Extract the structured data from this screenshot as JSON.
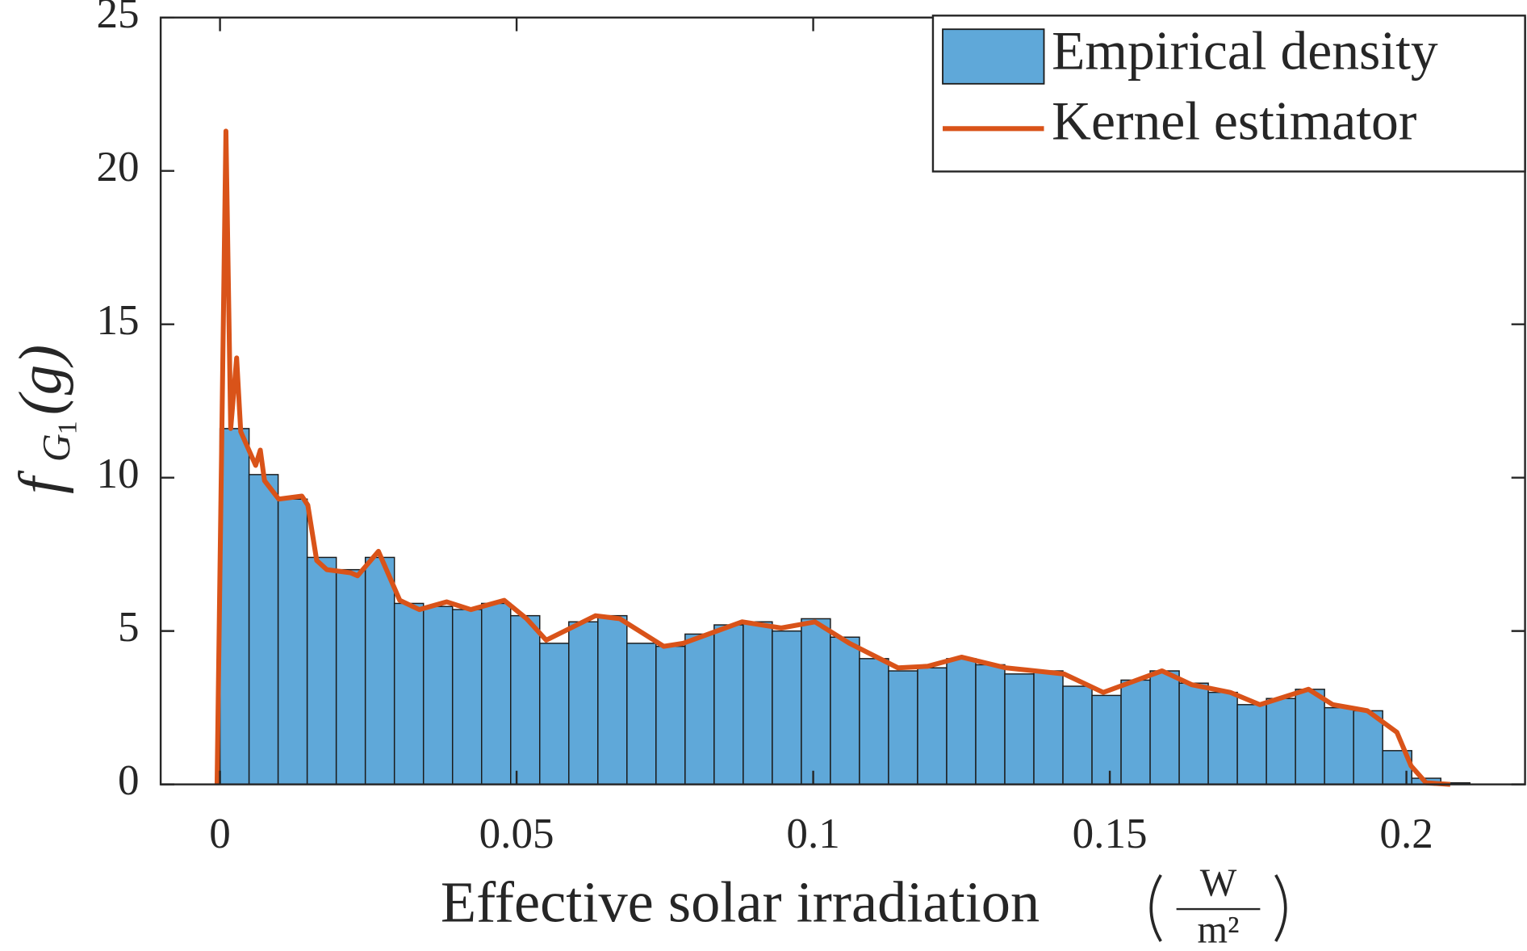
{
  "chart_data": {
    "type": "histogram",
    "name": "Empirical density",
    "color": "#5fa8d9",
    "bins": [
      0,
      0.0049,
      0.0098,
      0.0147,
      0.0196,
      0.0245,
      0.0294,
      0.0343,
      0.0392,
      0.0441,
      0.049,
      0.0539,
      0.0588,
      0.0637,
      0.0686,
      0.0735,
      0.0784,
      0.0833,
      0.0882,
      0.0931,
      0.098,
      0.1029,
      0.1078,
      0.1127,
      0.1176,
      0.1225,
      0.1274,
      0.1323,
      0.1372,
      0.1421,
      0.147,
      0.1519,
      0.1568,
      0.1617,
      0.1666,
      0.1715,
      0.1764,
      0.1813,
      0.1862,
      0.1911,
      0.196,
      0.2009,
      0.2058,
      0.2107
    ],
    "values": [
      11.6,
      10.1,
      9.3,
      7.4,
      7.0,
      7.4,
      5.9,
      5.8,
      5.7,
      5.9,
      5.5,
      4.6,
      5.3,
      5.5,
      4.6,
      4.5,
      4.9,
      5.2,
      5.3,
      5.0,
      5.4,
      4.8,
      4.1,
      3.7,
      3.8,
      4.1,
      3.9,
      3.6,
      3.7,
      3.2,
      2.9,
      3.4,
      3.7,
      3.3,
      3.0,
      2.6,
      2.8,
      3.1,
      2.5,
      2.4,
      1.1,
      0.2,
      0.05
    ],
    "overlay": {
      "type": "line",
      "name": "Kernel estimator",
      "color": "#d95319",
      "x": [
        -0.0005,
        0.001,
        0.0018,
        0.0028,
        0.0035,
        0.006,
        0.0068,
        0.0075,
        0.0099,
        0.0138,
        0.0148,
        0.0163,
        0.018,
        0.022,
        0.0232,
        0.0267,
        0.0303,
        0.0336,
        0.0382,
        0.0423,
        0.0479,
        0.0517,
        0.055,
        0.0633,
        0.0674,
        0.0748,
        0.0781,
        0.088,
        0.0946,
        0.1003,
        0.1061,
        0.1143,
        0.1193,
        0.125,
        0.1325,
        0.1374,
        0.1423,
        0.1489,
        0.1588,
        0.1638,
        0.1703,
        0.1753,
        0.1835,
        0.1876,
        0.1934,
        0.1984,
        0.2008,
        0.2033,
        0.2074
      ],
      "values": [
        0,
        21.3,
        11.6,
        13.9,
        11.5,
        10.4,
        10.9,
        9.9,
        9.3,
        9.4,
        9.1,
        7.3,
        7.0,
        6.9,
        6.8,
        7.6,
        6.0,
        5.7,
        5.95,
        5.7,
        6.0,
        5.4,
        4.7,
        5.5,
        5.4,
        4.5,
        4.6,
        5.3,
        5.1,
        5.3,
        4.6,
        3.8,
        3.85,
        4.15,
        3.8,
        3.7,
        3.6,
        3.0,
        3.7,
        3.25,
        3.0,
        2.6,
        3.1,
        2.6,
        2.4,
        1.7,
        0.6,
        0.05,
        0
      ]
    },
    "xlim": [
      -0.01,
      0.22
    ],
    "ylim": [
      0,
      25
    ],
    "xticks": [
      0,
      0.05,
      0.1,
      0.15,
      0.2
    ],
    "yticks": [
      0,
      5,
      10,
      15,
      20,
      25
    ],
    "xlabel": "Effective solar irradiation",
    "xlabel_unit": {
      "numerator": "W",
      "denominator": "m²"
    },
    "ylabel": {
      "symbol": "f",
      "subscript": "G",
      "subsubscript": "1",
      "argument": "(g)"
    },
    "legend": "upper right",
    "grid": false
  }
}
